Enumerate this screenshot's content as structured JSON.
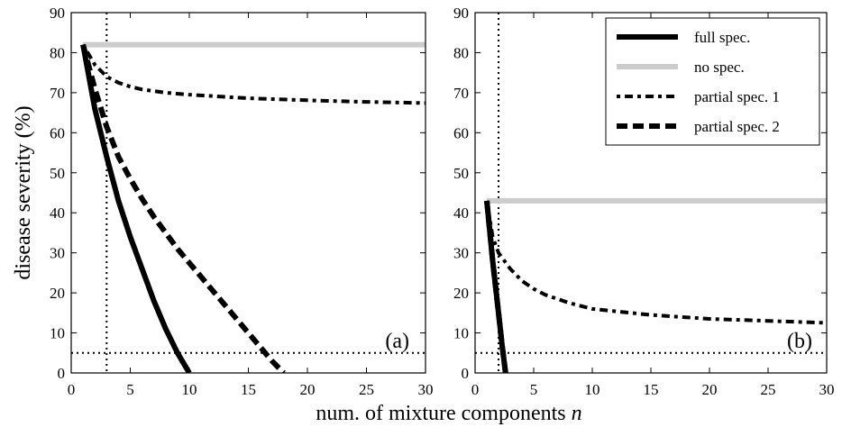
{
  "figure": {
    "xlabel": "num. of mixture components",
    "xlabel_var": "n",
    "ylabel": "disease severity (%)"
  },
  "legend": {
    "entries": [
      {
        "key": "full",
        "label": "full spec."
      },
      {
        "key": "none",
        "label": "no spec."
      },
      {
        "key": "p1",
        "label": "partial spec. 1"
      },
      {
        "key": "p2",
        "label": "partial spec. 2"
      }
    ]
  },
  "styles": {
    "full": {
      "color": "#000000"
    },
    "none": {
      "color": "#cccccc"
    },
    "p1": {
      "color": "#000000"
    },
    "p2": {
      "color": "#000000"
    },
    "threshold": {
      "color": "#000000"
    }
  },
  "chart_data": [
    {
      "type": "line",
      "panel_label": "(a)",
      "xlim": [
        0,
        30
      ],
      "ylim": [
        0,
        90
      ],
      "xticks": [
        0,
        5,
        10,
        15,
        20,
        25,
        30
      ],
      "yticks": [
        0,
        10,
        20,
        30,
        40,
        50,
        60,
        70,
        80,
        90
      ],
      "grid": false,
      "legend": false,
      "threshold_y": 5,
      "vline_x": 3,
      "series": [
        {
          "key": "full",
          "x": [
            1,
            2,
            3,
            4,
            5,
            6,
            7,
            8,
            9,
            10
          ],
          "y": [
            82,
            66,
            54,
            43,
            34,
            26,
            18,
            11,
            5,
            0
          ]
        },
        {
          "key": "none",
          "x": [
            1,
            30
          ],
          "y": [
            82,
            82
          ]
        },
        {
          "key": "p1",
          "x": [
            1,
            2,
            3,
            4,
            5,
            6,
            8,
            10,
            15,
            20,
            25,
            30
          ],
          "y": [
            82,
            77,
            74,
            72.5,
            71.5,
            70.8,
            70,
            69.5,
            68.6,
            68.1,
            67.7,
            67.4
          ]
        },
        {
          "key": "p2",
          "x": [
            1,
            2,
            3,
            4,
            5,
            6,
            7,
            8,
            9,
            10,
            11,
            12,
            13,
            14,
            15,
            16,
            17,
            18
          ],
          "y": [
            82,
            71,
            61.5,
            54,
            48.5,
            43.5,
            39,
            35,
            31,
            27.5,
            24,
            20.5,
            17,
            13.5,
            10,
            6.5,
            3,
            0
          ]
        }
      ]
    },
    {
      "type": "line",
      "panel_label": "(b)",
      "xlim": [
        0,
        30
      ],
      "ylim": [
        0,
        90
      ],
      "xticks": [
        0,
        5,
        10,
        15,
        20,
        25,
        30
      ],
      "yticks": [
        0,
        10,
        20,
        30,
        40,
        50,
        60,
        70,
        80,
        90
      ],
      "grid": false,
      "legend": "top-right",
      "threshold_y": 5,
      "vline_x": 2,
      "series": [
        {
          "key": "full",
          "x": [
            1,
            1.5,
            2,
            2.3,
            2.6
          ],
          "y": [
            43,
            28,
            15,
            7,
            0
          ]
        },
        {
          "key": "none",
          "x": [
            1,
            30
          ],
          "y": [
            43,
            43
          ]
        },
        {
          "key": "p1",
          "x": [
            1,
            1.5,
            2,
            3,
            4,
            5,
            6,
            8,
            10,
            15,
            20,
            25,
            30
          ],
          "y": [
            43,
            34,
            30,
            26,
            23,
            21,
            19.5,
            17.5,
            16,
            14.5,
            13.5,
            13,
            12.5
          ]
        },
        {
          "key": "p2",
          "x": [
            1,
            1.5,
            2,
            2.3,
            2.6
          ],
          "y": [
            43,
            28,
            15,
            7,
            0
          ]
        }
      ]
    }
  ]
}
